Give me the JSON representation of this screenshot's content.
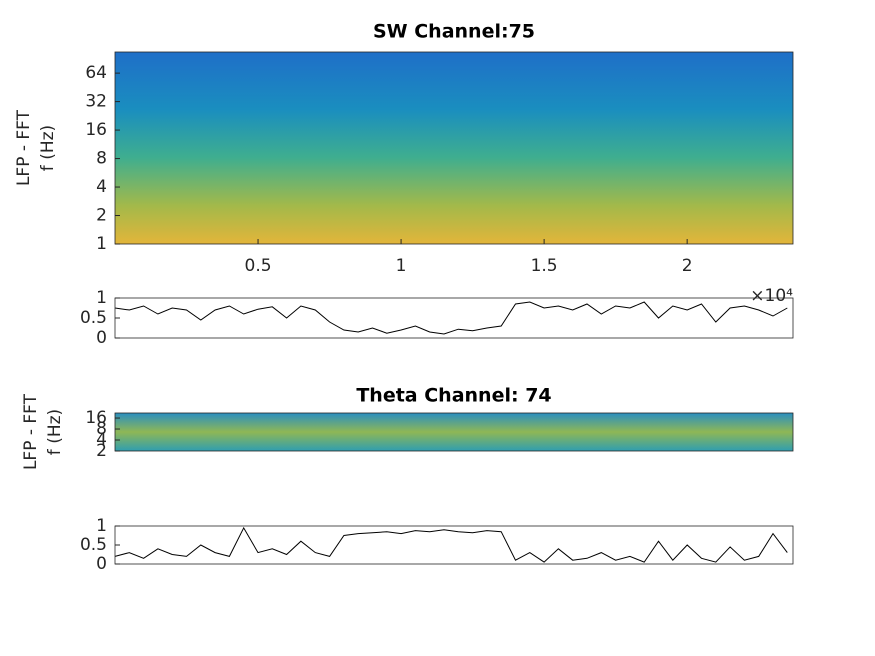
{
  "charts": [
    {
      "type": "spectrogram",
      "title": "SW Channel:75",
      "ylabel": [
        "LFP - FFT",
        "f (Hz)"
      ],
      "log_y": true,
      "ylim": [
        1,
        107
      ],
      "yticks": [
        1,
        2,
        4,
        8,
        16,
        32,
        64
      ],
      "xlim": [
        0,
        23700
      ],
      "xticks": [
        {
          "value": 5000,
          "label": "0.5"
        },
        {
          "value": 10000,
          "label": "1"
        },
        {
          "value": 15000,
          "label": "1.5"
        },
        {
          "value": 20000,
          "label": "2"
        }
      ],
      "x_exponent": "×10⁴"
    },
    {
      "type": "line",
      "xlim": [
        0,
        23700
      ],
      "ylim": [
        0,
        1
      ],
      "yticks": [
        0,
        0.5,
        1
      ],
      "color": "#000000",
      "x": [
        0,
        500,
        1000,
        1500,
        2000,
        2500,
        3000,
        3500,
        4000,
        4500,
        5000,
        5500,
        6000,
        6500,
        7000,
        7500,
        8000,
        8500,
        9000,
        9500,
        10000,
        10500,
        11000,
        11500,
        12000,
        12500,
        13000,
        13500,
        14000,
        14500,
        15000,
        15500,
        16000,
        16500,
        17000,
        17500,
        18000,
        18500,
        19000,
        19500,
        20000,
        20500,
        21000,
        21500,
        22000,
        22500,
        23000,
        23500
      ],
      "values": [
        0.75,
        0.7,
        0.8,
        0.6,
        0.75,
        0.7,
        0.45,
        0.7,
        0.8,
        0.6,
        0.72,
        0.78,
        0.5,
        0.8,
        0.7,
        0.4,
        0.2,
        0.15,
        0.25,
        0.12,
        0.2,
        0.3,
        0.15,
        0.1,
        0.22,
        0.18,
        0.25,
        0.3,
        0.85,
        0.9,
        0.75,
        0.8,
        0.7,
        0.85,
        0.6,
        0.8,
        0.75,
        0.9,
        0.5,
        0.8,
        0.7,
        0.85,
        0.4,
        0.75,
        0.8,
        0.7,
        0.55,
        0.75
      ]
    },
    {
      "type": "spectrogram",
      "title": "Theta Channel: 74",
      "ylabel": [
        "LFP - FFT",
        "f (Hz)"
      ],
      "log_y": true,
      "ylim": [
        2,
        22
      ],
      "yticks": [
        2,
        4,
        8,
        16
      ],
      "xlim": [
        0,
        23700
      ]
    },
    {
      "type": "line",
      "xlim": [
        0,
        23700
      ],
      "ylim": [
        0,
        1
      ],
      "yticks": [
        0,
        0.5,
        1
      ],
      "color": "#000000",
      "x": [
        0,
        500,
        1000,
        1500,
        2000,
        2500,
        3000,
        3500,
        4000,
        4500,
        5000,
        5500,
        6000,
        6500,
        7000,
        7500,
        8000,
        8500,
        9000,
        9500,
        10000,
        10500,
        11000,
        11500,
        12000,
        12500,
        13000,
        13500,
        14000,
        14500,
        15000,
        15500,
        16000,
        16500,
        17000,
        17500,
        18000,
        18500,
        19000,
        19500,
        20000,
        20500,
        21000,
        21500,
        22000,
        22500,
        23000,
        23500
      ],
      "values": [
        0.2,
        0.3,
        0.15,
        0.4,
        0.25,
        0.2,
        0.5,
        0.3,
        0.2,
        0.95,
        0.3,
        0.4,
        0.25,
        0.6,
        0.3,
        0.2,
        0.75,
        0.8,
        0.82,
        0.85,
        0.8,
        0.88,
        0.85,
        0.9,
        0.85,
        0.82,
        0.88,
        0.85,
        0.1,
        0.3,
        0.05,
        0.4,
        0.1,
        0.15,
        0.3,
        0.1,
        0.2,
        0.05,
        0.6,
        0.1,
        0.5,
        0.15,
        0.05,
        0.45,
        0.1,
        0.2,
        0.8,
        0.3
      ]
    }
  ]
}
